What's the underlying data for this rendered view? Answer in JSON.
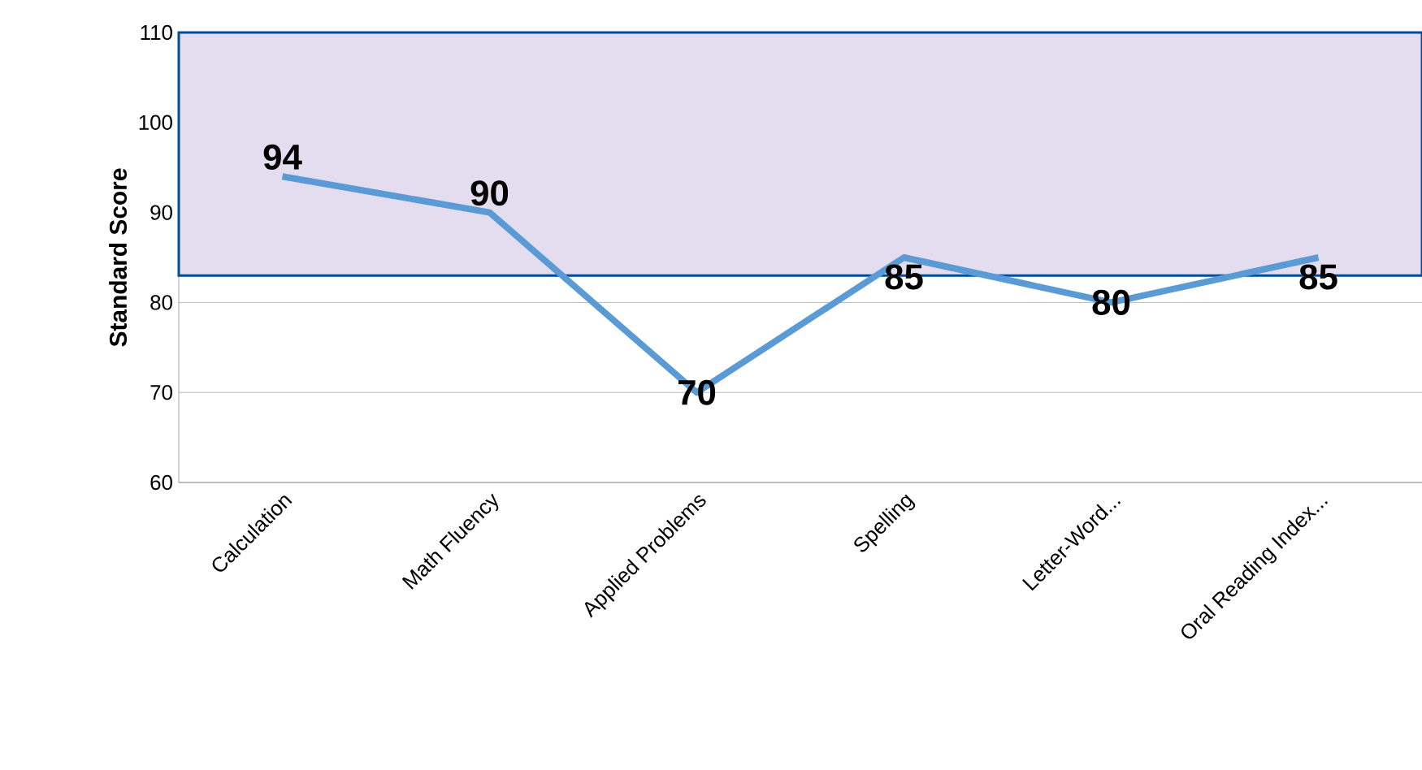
{
  "chart_data": {
    "type": "line",
    "ylabel": "Standard Score",
    "categories": [
      "Calculation",
      "Math Fluency",
      "Applied Problems",
      "Spelling",
      "Letter-Word...",
      "Oral Reading Index..."
    ],
    "series": [
      {
        "color": "#5b9bd5",
        "values": [
          94,
          90,
          70,
          85,
          80,
          85
        ]
      }
    ],
    "ylim": [
      60,
      110
    ],
    "yticks": [
      60,
      70,
      80,
      90,
      100,
      110
    ],
    "grid": "y",
    "data_labels": true,
    "marker": "none",
    "line_style": "solid",
    "bands": [
      {
        "axis": "y",
        "from": 83,
        "to": 110,
        "color": "#e4dcef"
      }
    ]
  }
}
